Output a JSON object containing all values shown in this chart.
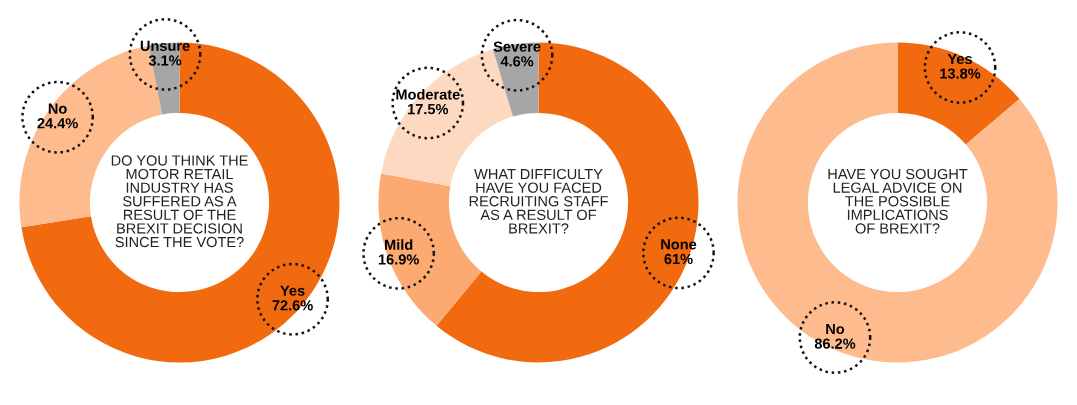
{
  "chart_data": [
    {
      "type": "donut",
      "title": "DO YOU THINK THE\nMOTOR RETAIL\nINDUSTRY HAS\nSUFFERED AS A\nRESULT OF THE\nBREXIT DECISION\nSINCE THE VOTE?",
      "categories": [
        "Yes",
        "No",
        "Unsure"
      ],
      "values": [
        72.6,
        24.4,
        3.1
      ],
      "colors": [
        "#f26a0f",
        "#fdbb8e",
        "#a6a6a6"
      ],
      "value_labels": [
        "72.6%",
        "24.4%",
        "3.1%"
      ]
    },
    {
      "type": "donut",
      "title": "WHAT DIFFICULTY\nHAVE YOU FACED\nRECRUITING STAFF\nAS A RESULT OF\nBREXIT?",
      "categories": [
        "None",
        "Mild",
        "Moderate",
        "Severe"
      ],
      "values": [
        61,
        16.9,
        17.5,
        4.6
      ],
      "colors": [
        "#f26a0f",
        "#fcaa72",
        "#fdd9c1",
        "#a6a6a6"
      ],
      "value_labels": [
        "61%",
        "16.9%",
        "17.5%",
        "4.6%"
      ]
    },
    {
      "type": "donut",
      "title": "HAVE YOU SOUGHT\nLEGAL ADVICE ON\nTHE POSSIBLE\nIMPLICATIONS\nOF BREXIT?",
      "categories": [
        "Yes",
        "No"
      ],
      "values": [
        13.8,
        86.2
      ],
      "colors": [
        "#f26a0f",
        "#fdbb8e"
      ],
      "value_labels": [
        "13.8%",
        "86.2%"
      ]
    }
  ]
}
